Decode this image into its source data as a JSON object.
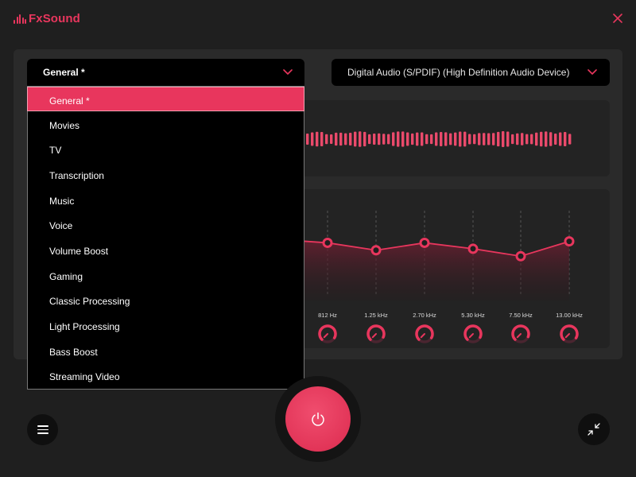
{
  "app": {
    "name": "FxSound",
    "accent": "#e8365d"
  },
  "titlebar": {
    "close_icon": "close-icon"
  },
  "preset": {
    "selected": "General *",
    "options": [
      "General *",
      "Movies",
      "TV",
      "Transcription",
      "Music",
      "Voice",
      "Volume Boost",
      "Gaming",
      "Classic Processing",
      "Light Processing",
      "Bass Boost",
      "Streaming Video"
    ],
    "dropdown_open": true
  },
  "device": {
    "selected": "Digital Audio (S/PDIF) (High Definition Audio Device)"
  },
  "equalizer": {
    "visible_bands": [
      {
        "label": "812 Hz",
        "level": 0.55
      },
      {
        "label": "1.25 kHz",
        "level": 0.5
      },
      {
        "label": "2.70 kHz",
        "level": 0.55
      },
      {
        "label": "5.30 kHz",
        "level": 0.51
      },
      {
        "label": "7.50 kHz",
        "level": 0.46
      },
      {
        "label": "13.00 kHz",
        "level": 0.56
      }
    ]
  },
  "controls": {
    "menu_icon": "hamburger-icon",
    "power_icon": "power-icon",
    "power_on": true,
    "minimize_icon": "collapse-arrows-icon"
  }
}
